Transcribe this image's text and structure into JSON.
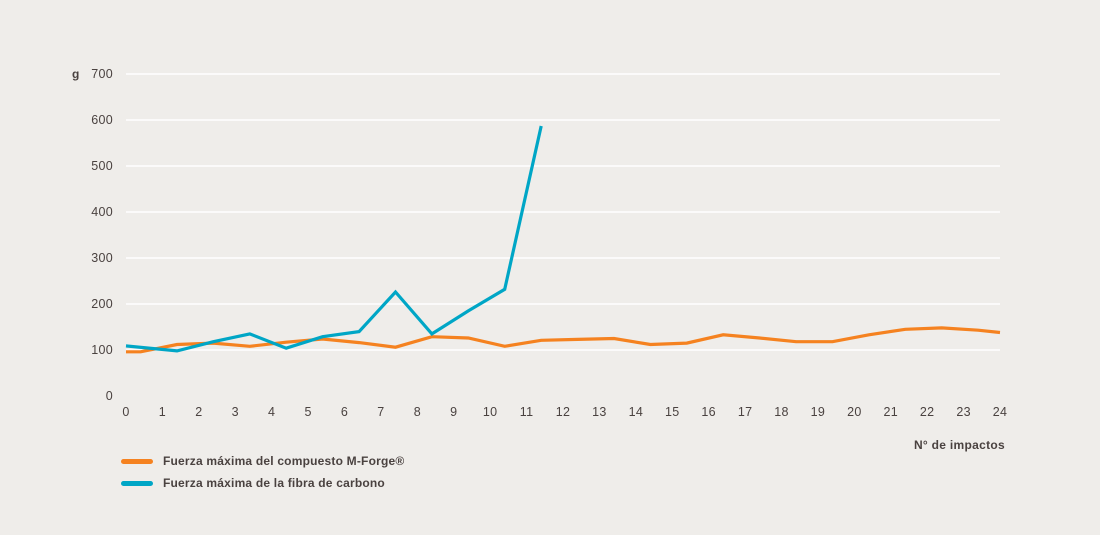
{
  "chart_data": {
    "type": "line",
    "title": "",
    "ylabel": "g",
    "xlabel": "N° de impactos",
    "ylim": [
      0,
      700
    ],
    "xlim": [
      0,
      24
    ],
    "yticks": [
      0,
      100,
      200,
      300,
      400,
      500,
      600,
      700
    ],
    "xticks": [
      0,
      1,
      2,
      3,
      4,
      5,
      6,
      7,
      8,
      9,
      10,
      11,
      12,
      13,
      14,
      15,
      16,
      17,
      18,
      19,
      20,
      21,
      22,
      23,
      24
    ],
    "grid": true,
    "legend_position": "bottom-left",
    "series": [
      {
        "name": "Fuerza máxima del compuesto M-Forge®",
        "color": "#f58220",
        "points": [
          [
            0,
            96
          ],
          [
            0.4,
            96
          ],
          [
            1.4,
            112
          ],
          [
            2.4,
            115
          ],
          [
            3.4,
            108
          ],
          [
            4.4,
            117
          ],
          [
            5.4,
            124
          ],
          [
            6.4,
            116
          ],
          [
            7.4,
            106
          ],
          [
            8.4,
            129
          ],
          [
            9.4,
            126
          ],
          [
            10.4,
            108
          ],
          [
            11.4,
            121
          ],
          [
            12.4,
            123
          ],
          [
            13.4,
            125
          ],
          [
            14.4,
            112
          ],
          [
            15.4,
            115
          ],
          [
            16.4,
            133
          ],
          [
            17.4,
            126
          ],
          [
            18.4,
            118
          ],
          [
            19.4,
            118
          ],
          [
            20.4,
            133
          ],
          [
            21.4,
            145
          ],
          [
            22.4,
            148
          ],
          [
            23.4,
            143
          ],
          [
            24,
            138
          ]
        ]
      },
      {
        "name": "Fuerza máxima de la fibra de carbono",
        "color": "#00a6c6",
        "points": [
          [
            0,
            109
          ],
          [
            1.4,
            98
          ],
          [
            2.4,
            118
          ],
          [
            3.4,
            135
          ],
          [
            4.4,
            104
          ],
          [
            5.4,
            129
          ],
          [
            6.4,
            140
          ],
          [
            7.4,
            226
          ],
          [
            8.4,
            135
          ],
          [
            9.4,
            185
          ],
          [
            10.4,
            232
          ],
          [
            11.4,
            587
          ]
        ]
      }
    ]
  }
}
